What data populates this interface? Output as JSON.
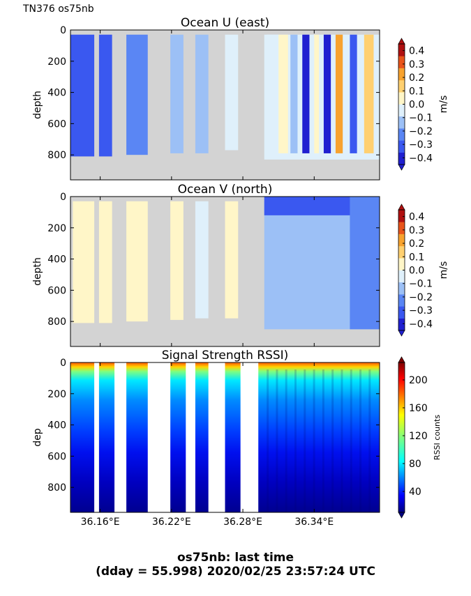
{
  "header": {
    "cruise_label": "TN376 os75nb"
  },
  "footer": {
    "line1": "os75nb: last time",
    "line2": "(dday = 55.998) 2020/02/25 23:57:24 UTC"
  },
  "chart_data": [
    {
      "type": "heatmap",
      "title": "Ocean U (east)",
      "ylabel": "depth",
      "ylim": [
        960,
        0
      ],
      "xlim": [
        36.135,
        36.395
      ],
      "yticks": [
        0,
        200,
        400,
        600,
        800
      ],
      "ytick_labels": [
        "0",
        "200",
        "400",
        "600",
        "800"
      ],
      "xticks": [
        36.16,
        36.22,
        36.28,
        36.34
      ],
      "colorbar": {
        "label": "m/s",
        "range": [
          -0.4,
          0.4
        ],
        "ticks": [
          "−0.4",
          "−0.3",
          "−0.2",
          "−0.1",
          "0.0",
          "0.1",
          "0.2",
          "0.3",
          "0.4"
        ],
        "levels": [
          "#2020d0",
          "#3a58f0",
          "#5a86f4",
          "#9cc0f6",
          "#dff0fb",
          "#fff6c8",
          "#ffd070",
          "#f7a22e",
          "#e8541a",
          "#b01010"
        ]
      },
      "no_data_color": "#d3d3d3",
      "profiles": [
        {
          "x0": 36.135,
          "x1": 36.155,
          "bottom": 810,
          "level": 1
        },
        {
          "x0": 36.159,
          "x1": 36.17,
          "bottom": 810,
          "level": 1
        },
        {
          "x0": 36.182,
          "x1": 36.2,
          "bottom": 800,
          "level": 2
        },
        {
          "x0": 36.219,
          "x1": 36.23,
          "bottom": 790,
          "level": 3
        },
        {
          "x0": 36.24,
          "x1": 36.251,
          "bottom": 790,
          "level": 3
        },
        {
          "x0": 36.265,
          "x1": 36.276,
          "bottom": 770,
          "level": 4
        },
        {
          "x0": 36.298,
          "x1": 36.395,
          "bottom": 830,
          "level": 4
        }
      ]
    },
    {
      "type": "heatmap",
      "title": "Ocean V (north)",
      "ylabel": "depth",
      "ylim": [
        960,
        0
      ],
      "xlim": [
        36.135,
        36.395
      ],
      "yticks": [
        0,
        200,
        400,
        600,
        800
      ],
      "ytick_labels": [
        "0",
        "200",
        "400",
        "600",
        "800"
      ],
      "xticks": [
        36.16,
        36.22,
        36.28,
        36.34
      ],
      "colorbar": {
        "label": "m/s",
        "range": [
          -0.4,
          0.4
        ],
        "ticks": [
          "−0.4",
          "−0.3",
          "−0.2",
          "−0.1",
          "0.0",
          "0.1",
          "0.2",
          "0.3",
          "0.4"
        ],
        "levels": [
          "#2020d0",
          "#3a58f0",
          "#5a86f4",
          "#9cc0f6",
          "#dff0fb",
          "#fff6c8",
          "#ffd070",
          "#f7a22e",
          "#e8541a",
          "#b01010"
        ]
      },
      "no_data_color": "#d3d3d3",
      "profiles": [
        {
          "x0": 36.137,
          "x1": 36.155,
          "bottom": 810,
          "level": 5
        },
        {
          "x0": 36.159,
          "x1": 36.17,
          "bottom": 810,
          "level": 5
        },
        {
          "x0": 36.182,
          "x1": 36.2,
          "bottom": 800,
          "level": 5
        },
        {
          "x0": 36.219,
          "x1": 36.23,
          "bottom": 790,
          "level": 5
        },
        {
          "x0": 36.24,
          "x1": 36.251,
          "bottom": 780,
          "level": 4
        },
        {
          "x0": 36.265,
          "x1": 36.276,
          "bottom": 780,
          "level": 5
        },
        {
          "x0": 36.298,
          "x1": 36.395,
          "bottom": 850,
          "level": 3
        }
      ]
    },
    {
      "type": "heatmap",
      "title": "Signal Strength RSSI)",
      "ylabel": "dep",
      "ylim": [
        960,
        0
      ],
      "xlim": [
        36.135,
        36.395
      ],
      "yticks": [
        0,
        200,
        400,
        600,
        800
      ],
      "ytick_labels": [
        "0",
        "200",
        "400",
        "600",
        "800"
      ],
      "xticks": [
        36.16,
        36.22,
        36.28,
        36.34
      ],
      "xtick_labels": [
        "36.16°E",
        "36.22°E",
        "36.28°E",
        "36.34°E"
      ],
      "colorbar": {
        "label": "RSSI counts",
        "range": [
          10,
          225
        ],
        "ticks": [
          "40",
          "80",
          "120",
          "160",
          "200"
        ],
        "tick_values": [
          40,
          80,
          120,
          160,
          200
        ]
      },
      "no_data_color": "#ffffff",
      "profiles": [
        {
          "x0": 36.135,
          "x1": 36.155
        },
        {
          "x0": 36.159,
          "x1": 36.172
        },
        {
          "x0": 36.182,
          "x1": 36.2
        },
        {
          "x0": 36.219,
          "x1": 36.232
        },
        {
          "x0": 36.24,
          "x1": 36.251
        },
        {
          "x0": 36.265,
          "x1": 36.278
        },
        {
          "x0": 36.293,
          "x1": 36.395
        }
      ]
    }
  ]
}
